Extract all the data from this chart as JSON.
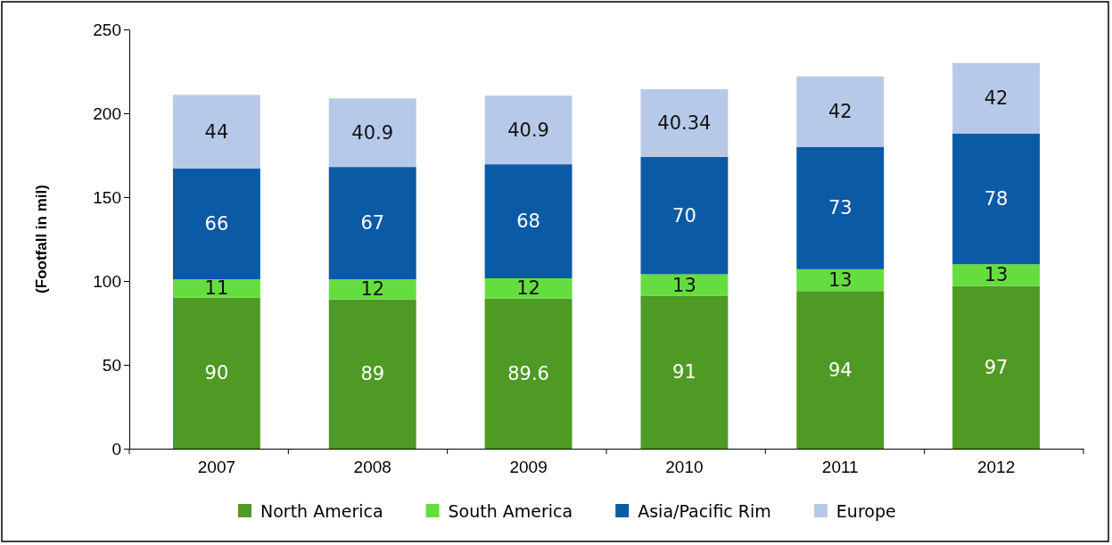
{
  "chart_data": {
    "type": "bar",
    "stacked": true,
    "ylabel": "(Footfall in mil)",
    "categories": [
      "2007",
      "2008",
      "2009",
      "2010",
      "2011",
      "2012"
    ],
    "series": [
      {
        "name": "North America",
        "color": "#4e9a24",
        "values": [
          90,
          89,
          89.6,
          91,
          94,
          97
        ]
      },
      {
        "name": "South America",
        "color": "#66dd3f",
        "values": [
          11,
          12,
          12,
          13,
          13,
          13
        ]
      },
      {
        "name": "Asia/Pacific Rim",
        "color": "#0b5aa6",
        "values": [
          66,
          67,
          68,
          70,
          73,
          78
        ]
      },
      {
        "name": "Europe",
        "color": "#b7c9e9",
        "values": [
          44,
          40.9,
          40.9,
          40.34,
          42,
          42
        ]
      }
    ],
    "ylim": [
      0,
      250
    ],
    "yticks": [
      0,
      50,
      100,
      150,
      200,
      250
    ],
    "grid": false,
    "legend": "bottom",
    "data_labels": true
  }
}
